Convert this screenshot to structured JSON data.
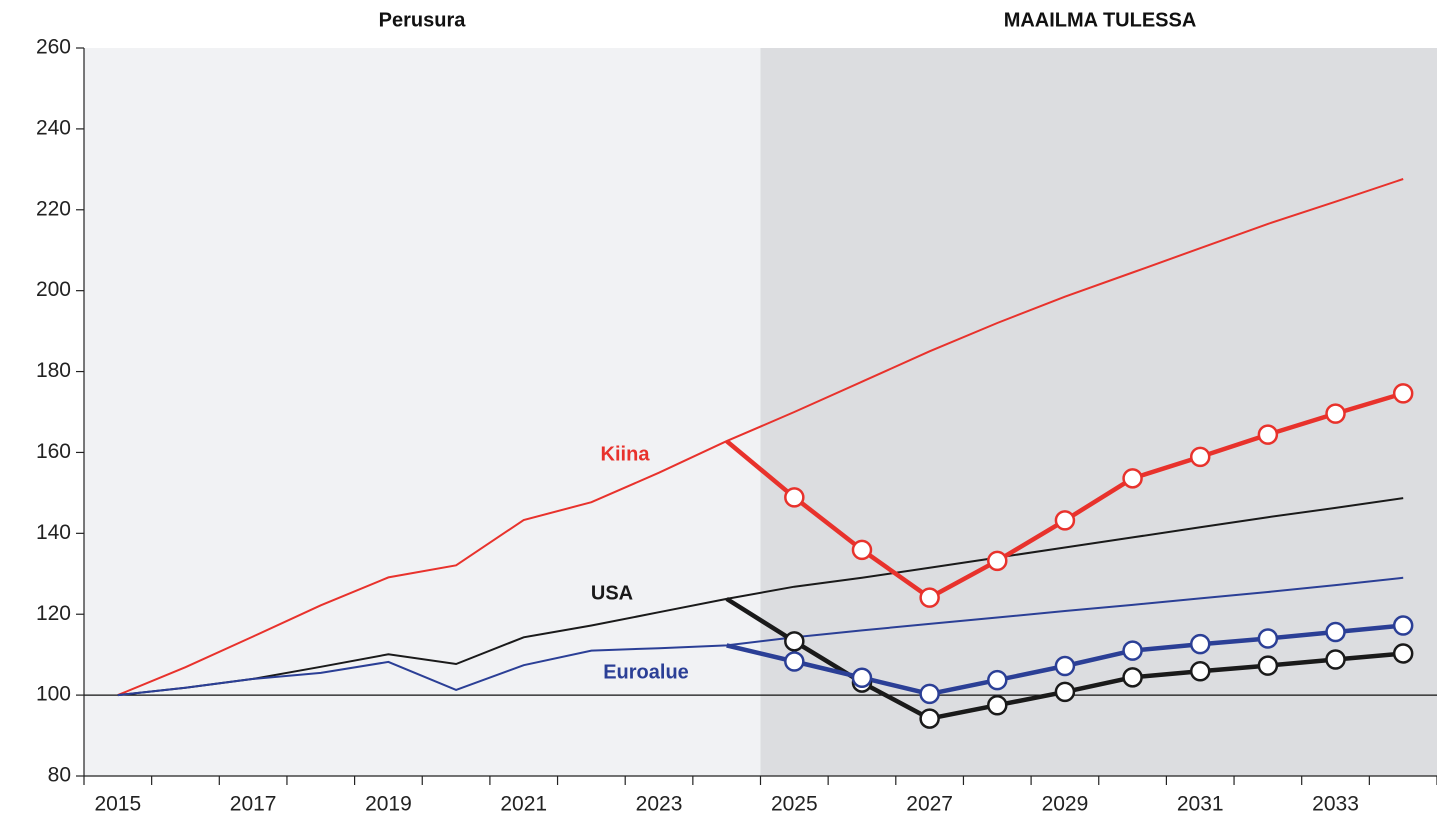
{
  "chart_data": {
    "type": "line",
    "sections": [
      "Perusura",
      "MAAILMA TULESSA"
    ],
    "shaded_from": "2025",
    "categories": [
      "2015",
      null,
      "2017",
      null,
      "2019",
      null,
      "2021",
      null,
      "2023",
      null,
      "2025",
      null,
      "2027",
      null,
      "2029",
      null,
      "2031",
      null,
      "2033",
      null
    ],
    "series": [
      {
        "name": "Kiina",
        "color": "#e8322c",
        "values": [
          100,
          106.9,
          114.5,
          122.2,
          129.1,
          132.1,
          143.3,
          147.7,
          155,
          162.8,
          170,
          177.5,
          185,
          192,
          198.5,
          204.5,
          210.5,
          216.5,
          222,
          227.6
        ],
        "scenario_values": [
          null,
          null,
          null,
          null,
          null,
          null,
          null,
          null,
          null,
          162.8,
          148.9,
          135.9,
          124.1,
          133.2,
          143.2,
          153.6,
          158.9,
          164.4,
          169.6,
          174.6
        ]
      },
      {
        "name": "USA",
        "color": "#1a1a1a",
        "values": [
          100,
          101.8,
          104,
          107,
          110.1,
          107.7,
          114.3,
          117.2,
          120.5,
          123.8,
          126.8,
          129,
          131.5,
          134,
          136.5,
          139,
          141.5,
          144,
          146.3,
          148.7
        ],
        "scenario_values": [
          null,
          null,
          null,
          null,
          null,
          null,
          null,
          null,
          null,
          123.8,
          113.3,
          103.1,
          94.2,
          97.5,
          100.8,
          104.4,
          105.9,
          107.3,
          108.8,
          110.3
        ]
      },
      {
        "name": "Euroalue",
        "color": "#2b3f96",
        "values": [
          100,
          101.8,
          104,
          105.5,
          108.2,
          101.3,
          107.4,
          111,
          111.6,
          112.3,
          114.3,
          116,
          117.6,
          119.2,
          120.8,
          122.3,
          123.9,
          125.5,
          127.2,
          129
        ],
        "scenario_values": [
          null,
          null,
          null,
          null,
          null,
          null,
          null,
          null,
          null,
          112.3,
          108.3,
          104.3,
          100.3,
          103.7,
          107.2,
          111,
          112.6,
          114,
          115.6,
          117.2
        ]
      }
    ],
    "reference_line": 100,
    "ylim": [
      80,
      260
    ],
    "yticks": [
      80,
      100,
      120,
      140,
      160,
      180,
      200,
      220,
      240,
      260
    ]
  }
}
